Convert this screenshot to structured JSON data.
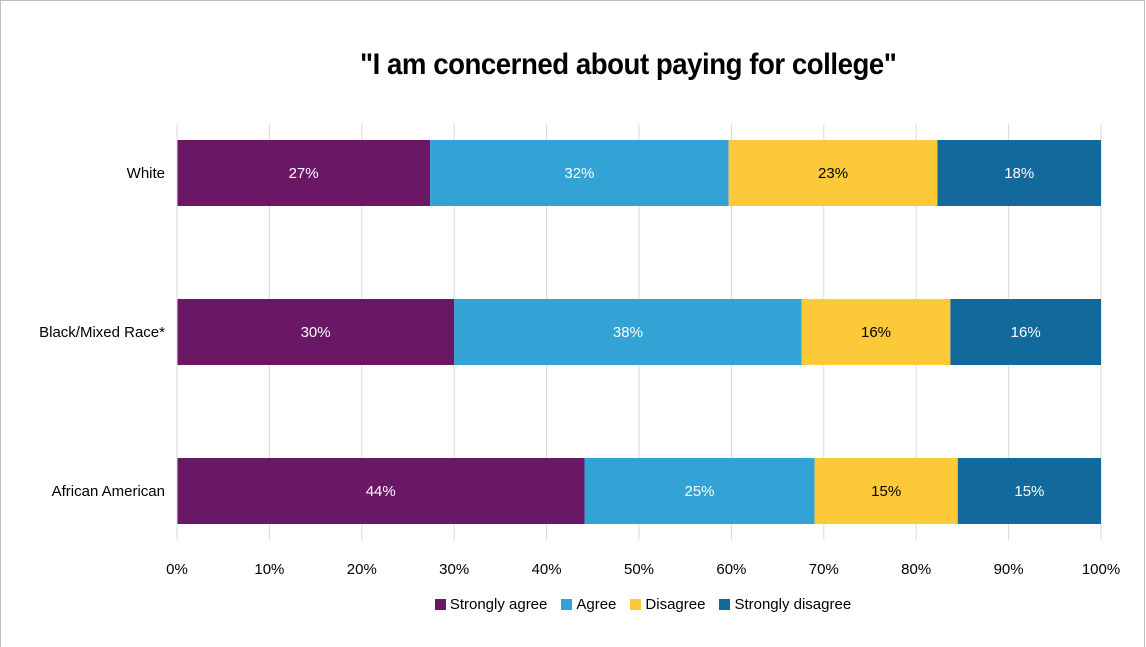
{
  "chart_data": {
    "type": "bar",
    "orientation": "horizontal",
    "stacked": true,
    "title": "\"I am concerned about paying for college\"",
    "categories": [
      "White",
      "Black/Mixed Race*",
      "African American"
    ],
    "series": [
      {
        "name": "Strongly agree",
        "color": "#6a1766",
        "label_color": "#ffffff",
        "values": [
          27.4,
          30.0,
          44.1
        ],
        "labels": [
          "27%",
          "30%",
          "44%"
        ]
      },
      {
        "name": "Agree",
        "color": "#33a3d6",
        "label_color": "#ffffff",
        "values": [
          32.3,
          37.6,
          24.9
        ],
        "labels": [
          "32%",
          "38%",
          "25%"
        ]
      },
      {
        "name": "Disagree",
        "color": "#fcc938",
        "label_color": "#000000",
        "values": [
          22.6,
          16.1,
          15.5
        ],
        "labels": [
          "23%",
          "16%",
          "15%"
        ]
      },
      {
        "name": "Strongly disagree",
        "color": "#11699c",
        "label_color": "#ffffff",
        "values": [
          17.7,
          16.3,
          15.5
        ],
        "labels": [
          "18%",
          "16%",
          "15%"
        ]
      }
    ],
    "xlim": [
      0,
      100
    ],
    "x_ticks": [
      "0%",
      "10%",
      "20%",
      "30%",
      "40%",
      "50%",
      "60%",
      "70%",
      "80%",
      "90%",
      "100%"
    ],
    "grid": true,
    "legend": "bottom"
  }
}
